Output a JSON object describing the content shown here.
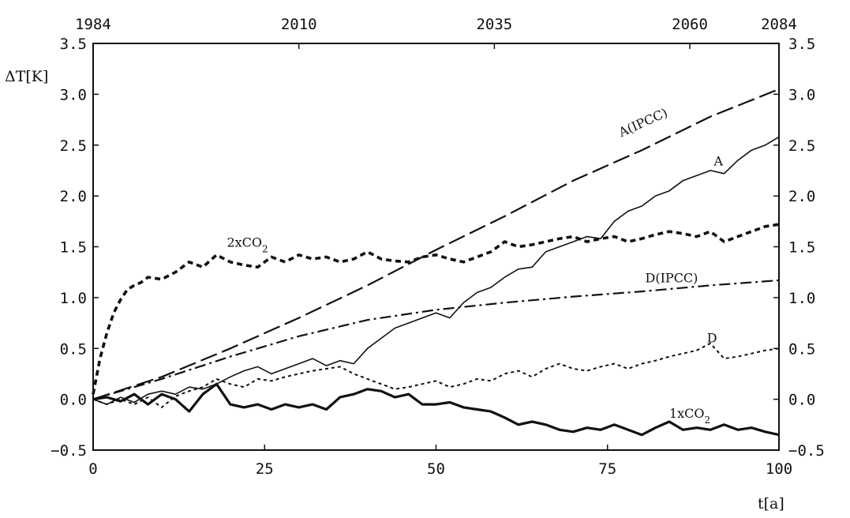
{
  "chart_data": {
    "type": "line",
    "xlabel": "t[a]",
    "ylabel": "ΔT[K]",
    "xlim": [
      0,
      100
    ],
    "ylim": [
      -0.5,
      3.5
    ],
    "grid": false,
    "x_ticks": [
      0,
      25,
      50,
      75,
      100
    ],
    "y_ticks": [
      -0.5,
      0.0,
      0.5,
      1.0,
      1.5,
      2.0,
      2.5,
      3.0,
      3.5
    ],
    "top_axis": {
      "label_positions": [
        0,
        30,
        58.5,
        87,
        100
      ],
      "labels": [
        "1984",
        "2010",
        "2035",
        "2060",
        "2084"
      ]
    },
    "series": [
      {
        "name": "A(IPCC)",
        "style": "long-dash",
        "color": "#111111",
        "x": [
          0,
          10,
          20,
          30,
          40,
          50,
          60,
          70,
          80,
          90,
          100
        ],
        "y": [
          0.0,
          0.22,
          0.5,
          0.8,
          1.12,
          1.47,
          1.8,
          2.15,
          2.45,
          2.78,
          3.05
        ]
      },
      {
        "name": "A",
        "style": "solid-thin",
        "color": "#111111",
        "x": [
          0,
          2,
          4,
          6,
          8,
          10,
          12,
          14,
          16,
          18,
          20,
          22,
          24,
          26,
          28,
          30,
          32,
          34,
          36,
          38,
          40,
          42,
          44,
          46,
          48,
          50,
          52,
          54,
          56,
          58,
          60,
          62,
          64,
          66,
          68,
          70,
          72,
          74,
          76,
          78,
          80,
          82,
          84,
          86,
          88,
          90,
          92,
          94,
          96,
          98,
          100
        ],
        "y": [
          0.0,
          -0.05,
          0.02,
          -0.03,
          0.05,
          0.08,
          0.05,
          0.12,
          0.1,
          0.15,
          0.22,
          0.28,
          0.32,
          0.25,
          0.3,
          0.35,
          0.4,
          0.33,
          0.38,
          0.35,
          0.5,
          0.6,
          0.7,
          0.75,
          0.8,
          0.85,
          0.8,
          0.95,
          1.05,
          1.1,
          1.2,
          1.28,
          1.3,
          1.45,
          1.5,
          1.55,
          1.6,
          1.58,
          1.75,
          1.85,
          1.9,
          2.0,
          2.05,
          2.15,
          2.2,
          2.25,
          2.22,
          2.35,
          2.45,
          2.5,
          2.58
        ]
      },
      {
        "name": "2xCO2",
        "style": "bold-dash",
        "color": "#111111",
        "x": [
          0,
          1,
          2,
          3,
          4,
          5,
          6,
          7,
          8,
          10,
          12,
          14,
          16,
          18,
          20,
          22,
          24,
          26,
          28,
          30,
          32,
          34,
          36,
          38,
          40,
          42,
          44,
          46,
          48,
          50,
          52,
          54,
          56,
          58,
          60,
          62,
          64,
          66,
          68,
          70,
          72,
          74,
          76,
          78,
          80,
          82,
          84,
          86,
          88,
          90,
          92,
          94,
          96,
          98,
          100
        ],
        "y": [
          0.05,
          0.4,
          0.65,
          0.85,
          0.98,
          1.08,
          1.12,
          1.15,
          1.2,
          1.18,
          1.25,
          1.35,
          1.3,
          1.42,
          1.35,
          1.32,
          1.3,
          1.4,
          1.35,
          1.42,
          1.38,
          1.4,
          1.35,
          1.38,
          1.45,
          1.38,
          1.36,
          1.35,
          1.4,
          1.42,
          1.38,
          1.35,
          1.4,
          1.45,
          1.55,
          1.5,
          1.52,
          1.55,
          1.58,
          1.6,
          1.55,
          1.58,
          1.6,
          1.55,
          1.58,
          1.62,
          1.65,
          1.63,
          1.6,
          1.65,
          1.55,
          1.6,
          1.65,
          1.7,
          1.72
        ]
      },
      {
        "name": "D(IPCC)",
        "style": "dash-dot",
        "color": "#111111",
        "x": [
          0,
          10,
          20,
          30,
          40,
          50,
          60,
          70,
          80,
          90,
          100
        ],
        "y": [
          0.0,
          0.2,
          0.42,
          0.62,
          0.78,
          0.88,
          0.95,
          1.01,
          1.06,
          1.12,
          1.17
        ]
      },
      {
        "name": "D",
        "style": "short-dash",
        "color": "#111111",
        "x": [
          0,
          2,
          4,
          6,
          8,
          10,
          12,
          14,
          16,
          18,
          20,
          22,
          24,
          26,
          28,
          30,
          32,
          34,
          36,
          38,
          40,
          42,
          44,
          46,
          48,
          50,
          52,
          54,
          56,
          58,
          60,
          62,
          64,
          66,
          68,
          70,
          72,
          74,
          76,
          78,
          80,
          82,
          84,
          86,
          88,
          90,
          92,
          94,
          96,
          98,
          100
        ],
        "y": [
          0.0,
          -0.05,
          0.0,
          -0.05,
          0.02,
          -0.08,
          0.03,
          0.08,
          0.12,
          0.2,
          0.15,
          0.12,
          0.2,
          0.18,
          0.22,
          0.25,
          0.28,
          0.3,
          0.32,
          0.25,
          0.2,
          0.15,
          0.1,
          0.12,
          0.15,
          0.18,
          0.12,
          0.15,
          0.2,
          0.18,
          0.25,
          0.28,
          0.22,
          0.3,
          0.35,
          0.3,
          0.28,
          0.32,
          0.35,
          0.3,
          0.35,
          0.38,
          0.42,
          0.45,
          0.48,
          0.55,
          0.4,
          0.42,
          0.45,
          0.48,
          0.5
        ]
      },
      {
        "name": "1xCO2",
        "style": "solid-bold",
        "color": "#111111",
        "x": [
          0,
          2,
          4,
          6,
          8,
          10,
          12,
          14,
          16,
          18,
          20,
          22,
          24,
          26,
          28,
          30,
          32,
          34,
          36,
          38,
          40,
          42,
          44,
          46,
          48,
          50,
          52,
          54,
          56,
          58,
          60,
          62,
          64,
          66,
          68,
          70,
          72,
          74,
          76,
          78,
          80,
          82,
          84,
          86,
          88,
          90,
          92,
          94,
          96,
          98,
          100
        ],
        "y": [
          0.0,
          0.02,
          -0.02,
          0.05,
          -0.05,
          0.05,
          0.0,
          -0.12,
          0.05,
          0.15,
          -0.05,
          -0.08,
          -0.05,
          -0.1,
          -0.05,
          -0.08,
          -0.05,
          -0.1,
          0.02,
          0.05,
          0.1,
          0.08,
          0.02,
          0.05,
          -0.05,
          -0.05,
          -0.03,
          -0.08,
          -0.1,
          -0.12,
          -0.18,
          -0.25,
          -0.22,
          -0.25,
          -0.3,
          -0.32,
          -0.28,
          -0.3,
          -0.25,
          -0.3,
          -0.35,
          -0.28,
          -0.22,
          -0.3,
          -0.28,
          -0.3,
          -0.25,
          -0.3,
          -0.28,
          -0.32,
          -0.35
        ]
      }
    ],
    "annotations": [
      {
        "text": "A(IPCC)",
        "series": "A(IPCC)"
      },
      {
        "text": "A",
        "series": "A"
      },
      {
        "text": "2xCO",
        "sub": "2",
        "series": "2xCO2"
      },
      {
        "text": "D(IPCC)",
        "series": "D(IPCC)"
      },
      {
        "text": "D",
        "series": "D"
      },
      {
        "text": "1xCO",
        "sub": "2",
        "series": "1xCO2"
      }
    ]
  }
}
